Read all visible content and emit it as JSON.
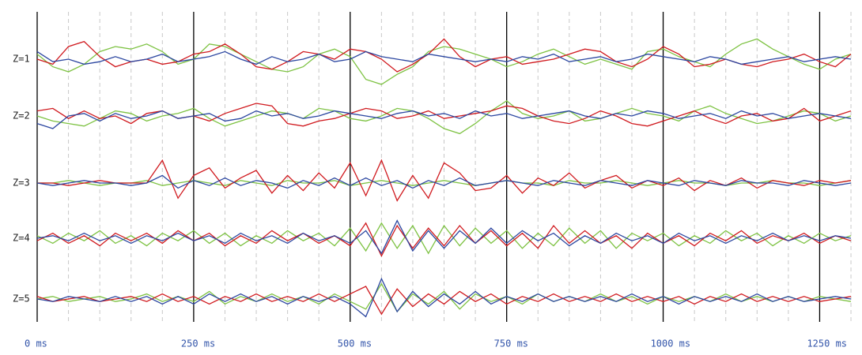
{
  "chart_data": {
    "type": "line",
    "xlim": [
      0,
      1305
    ],
    "ylim": [
      -10,
      10
    ],
    "xticks": [
      {
        "value": 0,
        "label": "0 ms"
      },
      {
        "value": 250,
        "label": "250 ms"
      },
      {
        "value": 500,
        "label": "500 ms"
      },
      {
        "value": 750,
        "label": "750 ms"
      },
      {
        "value": 1000,
        "label": "1000 ms"
      },
      {
        "value": 1250,
        "label": "1250 ms"
      }
    ],
    "xminorticks": [
      50,
      100,
      150,
      200,
      300,
      350,
      400,
      450,
      550,
      600,
      650,
      700,
      800,
      850,
      900,
      950,
      1050,
      1100,
      1150,
      1200,
      1300
    ],
    "x": [
      0,
      25,
      50,
      75,
      100,
      125,
      150,
      175,
      200,
      225,
      250,
      275,
      300,
      325,
      350,
      375,
      400,
      425,
      450,
      475,
      500,
      525,
      550,
      575,
      600,
      625,
      650,
      675,
      700,
      725,
      750,
      775,
      800,
      825,
      850,
      875,
      900,
      925,
      950,
      975,
      1000,
      1025,
      1050,
      1075,
      1100,
      1125,
      1150,
      1175,
      1200,
      1225,
      1250,
      1275,
      1300
    ],
    "rows": [
      {
        "label": "Z=1",
        "series": [
          {
            "color": "#7dc242",
            "values": [
              2,
              -3,
              -5,
              -2,
              3,
              5,
              4,
              6,
              3,
              -2,
              0,
              6,
              5,
              2,
              -1,
              -4,
              -5,
              -3,
              2,
              4,
              1,
              -8,
              -10,
              -6,
              -3,
              3,
              5,
              4,
              2,
              0,
              -3,
              -1,
              2,
              4,
              1,
              -2,
              0,
              -2,
              -4,
              3,
              4,
              1,
              -1,
              -3,
              2,
              6,
              8,
              4,
              1,
              -2,
              -4,
              0,
              2
            ]
          },
          {
            "color": "#d0191e",
            "values": [
              0,
              -2,
              5,
              7,
              1,
              -3,
              -1,
              0,
              -2,
              -1,
              2,
              3,
              6,
              2,
              -3,
              -4,
              -1,
              3,
              2,
              0,
              4,
              3,
              0,
              -5,
              -2,
              2,
              8,
              1,
              -3,
              0,
              1,
              -2,
              -1,
              0,
              2,
              4,
              3,
              -1,
              -3,
              0,
              5,
              2,
              -3,
              -2,
              0,
              -2,
              -3,
              -1,
              0,
              2,
              -1,
              -3,
              2
            ]
          },
          {
            "color": "#2b46a0",
            "values": [
              3,
              -1,
              0,
              -2,
              -1,
              1,
              -1,
              0,
              2,
              -1,
              0,
              1,
              3,
              0,
              -2,
              1,
              -1,
              0,
              2,
              -1,
              0,
              3,
              1,
              0,
              -1,
              2,
              1,
              0,
              -1,
              0,
              -1,
              1,
              0,
              2,
              -1,
              0,
              1,
              -1,
              0,
              2,
              1,
              0,
              -1,
              1,
              0,
              -2,
              -1,
              0,
              1,
              -1,
              0,
              1,
              0
            ]
          }
        ]
      },
      {
        "label": "Z=2",
        "series": [
          {
            "color": "#7dc242",
            "values": [
              0,
              -2,
              -3,
              -4,
              -1,
              2,
              1,
              -2,
              0,
              1,
              3,
              -1,
              -4,
              -2,
              0,
              2,
              1,
              -1,
              3,
              2,
              -1,
              -2,
              0,
              3,
              2,
              -1,
              -5,
              -7,
              -3,
              2,
              6,
              1,
              -1,
              0,
              2,
              -2,
              -1,
              1,
              3,
              1,
              0,
              -2,
              2,
              4,
              1,
              -1,
              -3,
              -2,
              0,
              2,
              1,
              -2,
              0
            ]
          },
          {
            "color": "#d0191e",
            "values": [
              2,
              3,
              -1,
              2,
              -1,
              0,
              -3,
              1,
              2,
              -1,
              0,
              -2,
              1,
              3,
              5,
              4,
              -3,
              -4,
              -2,
              -1,
              1,
              3,
              2,
              -1,
              0,
              2,
              -1,
              0,
              1,
              2,
              4,
              3,
              0,
              -2,
              -3,
              -1,
              2,
              0,
              -3,
              -4,
              -2,
              0,
              2,
              -1,
              -3,
              0,
              1,
              -2,
              -1,
              3,
              -2,
              0,
              2
            ]
          },
          {
            "color": "#2b46a0",
            "values": [
              -3,
              -5,
              0,
              1,
              -2,
              1,
              -1,
              0,
              2,
              -1,
              0,
              1,
              -2,
              -1,
              2,
              0,
              1,
              -1,
              0,
              2,
              1,
              0,
              -1,
              1,
              2,
              0,
              1,
              -1,
              2,
              0,
              1,
              -1,
              0,
              1,
              2,
              0,
              -1,
              1,
              0,
              2,
              1,
              -1,
              0,
              1,
              -1,
              2,
              0,
              1,
              -1,
              0,
              1,
              0,
              -1
            ]
          }
        ]
      },
      {
        "label": "Z=3",
        "series": [
          {
            "color": "#7dc242",
            "values": [
              0,
              0,
              1,
              0,
              -1,
              0,
              0,
              1,
              -1,
              0,
              1,
              0,
              -1,
              1,
              0,
              -1,
              1,
              0,
              0,
              1,
              -1,
              0,
              1,
              0,
              -1,
              0,
              1,
              0,
              -1,
              0,
              1,
              0,
              0,
              -1,
              1,
              0,
              0,
              1,
              0,
              -1,
              0,
              1,
              0,
              0,
              -1,
              0,
              0,
              1,
              0,
              0,
              -1,
              0,
              1
            ]
          },
          {
            "color": "#d0191e",
            "values": [
              0,
              0,
              -1,
              0,
              1,
              0,
              0,
              0,
              9,
              -6,
              3,
              6,
              -2,
              2,
              5,
              -4,
              3,
              -3,
              4,
              -2,
              8,
              -5,
              9,
              -7,
              3,
              -6,
              8,
              4,
              -3,
              -2,
              3,
              -4,
              2,
              -1,
              4,
              -2,
              1,
              3,
              -2,
              1,
              -1,
              2,
              -3,
              1,
              -1,
              2,
              -2,
              1,
              0,
              -1,
              1,
              0,
              1
            ]
          },
          {
            "color": "#2b46a0",
            "values": [
              0,
              -1,
              0,
              1,
              0,
              0,
              -1,
              0,
              3,
              -2,
              1,
              -1,
              2,
              -1,
              1,
              0,
              -2,
              1,
              -1,
              2,
              -1,
              2,
              -1,
              1,
              -2,
              1,
              -1,
              2,
              -1,
              0,
              1,
              0,
              -1,
              1,
              0,
              -1,
              1,
              0,
              -1,
              1,
              0,
              -1,
              1,
              0,
              -1,
              1,
              0,
              0,
              -1,
              1,
              0,
              -1,
              0
            ]
          }
        ]
      },
      {
        "label": "Z=4",
        "series": [
          {
            "color": "#7dc242",
            "values": [
              1,
              -2,
              2,
              -1,
              3,
              -2,
              1,
              -3,
              2,
              -1,
              3,
              -2,
              2,
              -3,
              1,
              -2,
              3,
              -1,
              2,
              -3,
              4,
              -5,
              6,
              -4,
              5,
              -6,
              5,
              -3,
              4,
              -2,
              3,
              -4,
              2,
              -3,
              4,
              -2,
              3,
              -4,
              2,
              -1,
              2,
              -3,
              1,
              -2,
              3,
              -1,
              2,
              -3,
              1,
              -2,
              2,
              -1,
              1
            ]
          },
          {
            "color": "#d0191e",
            "values": [
              -1,
              2,
              -2,
              1,
              -3,
              2,
              -1,
              2,
              -2,
              3,
              -1,
              2,
              -3,
              1,
              -2,
              3,
              -1,
              2,
              -2,
              1,
              -3,
              6,
              -7,
              5,
              -4,
              4,
              -3,
              5,
              -2,
              3,
              -3,
              2,
              -4,
              5,
              -2,
              3,
              -2,
              1,
              -4,
              2,
              -2,
              1,
              -3,
              2,
              -1,
              3,
              -2,
              1,
              -1,
              2,
              -2,
              1,
              -1
            ]
          },
          {
            "color": "#2b46a0",
            "values": [
              0,
              1,
              -1,
              2,
              -1,
              1,
              -2,
              1,
              -1,
              2,
              -1,
              1,
              -2,
              2,
              -1,
              1,
              -2,
              2,
              -1,
              1,
              -2,
              3,
              -6,
              7,
              -5,
              3,
              -4,
              3,
              -2,
              4,
              -2,
              3,
              -1,
              2,
              -3,
              1,
              -2,
              2,
              -1,
              1,
              -2,
              2,
              -1,
              1,
              -2,
              1,
              -1,
              2,
              -1,
              1,
              -1,
              1,
              0
            ]
          }
        ]
      },
      {
        "label": "Z=5",
        "series": [
          {
            "color": "#7dc242",
            "values": [
              0,
              1,
              -1,
              0,
              1,
              -1,
              0,
              2,
              -1,
              1,
              -1,
              3,
              -2,
              1,
              -1,
              2,
              -1,
              1,
              -2,
              2,
              -1,
              -4,
              6,
              -5,
              2,
              -2,
              3,
              -4,
              2,
              -1,
              1,
              -2,
              2,
              -1,
              1,
              -1,
              2,
              -1,
              1,
              -2,
              1,
              -1,
              1,
              -1,
              2,
              -1,
              1,
              -1,
              1,
              -1,
              1,
              0,
              -1
            ]
          },
          {
            "color": "#d0191e",
            "values": [
              1,
              -1,
              0,
              1,
              -1,
              0,
              1,
              -1,
              2,
              -1,
              1,
              -2,
              1,
              -1,
              2,
              -1,
              1,
              -1,
              2,
              -1,
              2,
              5,
              -6,
              4,
              -3,
              2,
              -2,
              3,
              -1,
              2,
              -2,
              1,
              -1,
              2,
              -1,
              1,
              -1,
              2,
              -1,
              1,
              -1,
              1,
              -2,
              1,
              -1,
              2,
              -1,
              1,
              -1,
              1,
              -1,
              0,
              1
            ]
          },
          {
            "color": "#2b46a0",
            "values": [
              0,
              -1,
              1,
              0,
              -1,
              1,
              -1,
              1,
              -2,
              1,
              -2,
              2,
              -1,
              2,
              -1,
              1,
              -2,
              1,
              -1,
              1,
              -2,
              -7,
              8,
              -5,
              3,
              -3,
              2,
              -2,
              3,
              -2,
              1,
              -1,
              2,
              -1,
              1,
              -1,
              1,
              -1,
              2,
              -1,
              1,
              -2,
              1,
              -1,
              1,
              -1,
              2,
              -1,
              1,
              -1,
              0,
              1,
              0
            ]
          }
        ]
      }
    ]
  }
}
